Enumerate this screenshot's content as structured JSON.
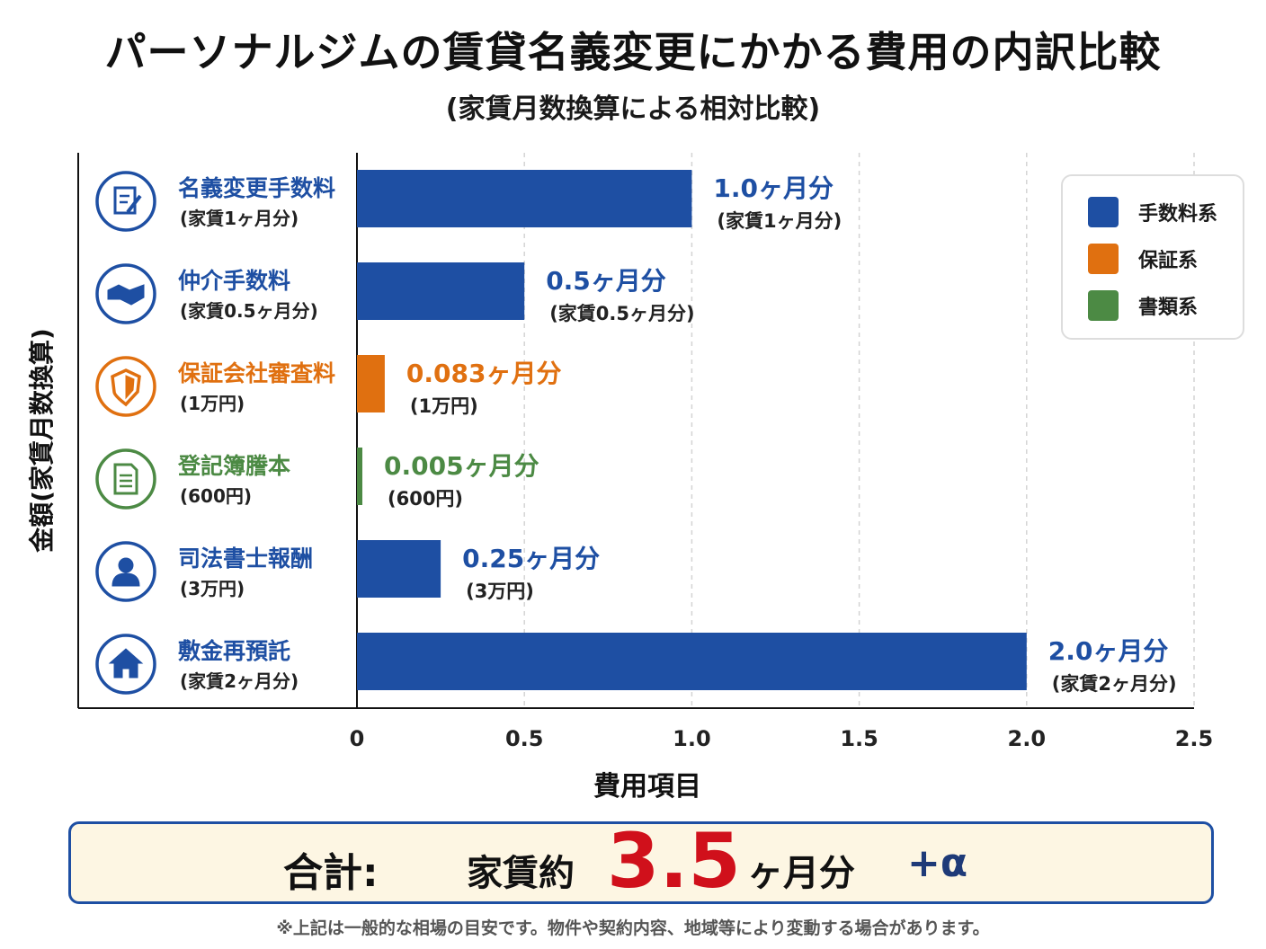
{
  "title": "パーソナルジムの賃貸名義変更にかかる費用の内訳比較",
  "subtitle": "(家賃月数換算による相対比較)",
  "colors": {
    "fee": "#1e4fa3",
    "guarantee": "#e07010",
    "document": "#4c8a44"
  },
  "chart_data": {
    "type": "bar",
    "orientation": "horizontal",
    "xlabel": "費用項目",
    "ylabel": "金額(家賃月数換算)",
    "xlim": [
      0,
      2.5
    ],
    "xticks": [
      "0",
      "0.5",
      "1.0",
      "1.5",
      "2.0",
      "2.5"
    ],
    "grid": "vertical-dashed",
    "legend_position": "top-right",
    "categories": [
      {
        "name": "名義変更手数料",
        "sub": "(家賃1ヶ月分)",
        "value": 1.0,
        "group": "fee",
        "label": "1.0ヶ月分",
        "label_sub": "(家賃1ヶ月分)",
        "icon": "document-edit-icon"
      },
      {
        "name": "仲介手数料",
        "sub": "(家賃0.5ヶ月分)",
        "value": 0.5,
        "group": "fee",
        "label": "0.5ヶ月分",
        "label_sub": "(家賃0.5ヶ月分)",
        "icon": "handshake-icon"
      },
      {
        "name": "保証会社審査料",
        "sub": "(1万円)",
        "value": 0.083,
        "group": "guarantee",
        "label": "0.083ヶ月分",
        "label_sub": "(1万円)",
        "icon": "shield-icon"
      },
      {
        "name": "登記簿謄本",
        "sub": "(600円)",
        "value": 0.005,
        "group": "document",
        "label": "0.005ヶ月分",
        "label_sub": "(600円)",
        "icon": "document-icon"
      },
      {
        "name": "司法書士報酬",
        "sub": "(3万円)",
        "value": 0.25,
        "group": "fee",
        "label": "0.25ヶ月分",
        "label_sub": "(3万円)",
        "icon": "person-icon"
      },
      {
        "name": "敷金再預託",
        "sub": "(家賃2ヶ月分)",
        "value": 2.0,
        "group": "fee",
        "label": "2.0ヶ月分",
        "label_sub": "(家賃2ヶ月分)",
        "icon": "house-icon"
      }
    ],
    "legend": [
      {
        "name": "手数料系",
        "group": "fee"
      },
      {
        "name": "保証系",
        "group": "guarantee"
      },
      {
        "name": "書類系",
        "group": "document"
      }
    ]
  },
  "total": {
    "label": "合計:",
    "prefix": "家賃約",
    "value": "3.5",
    "unit": "ヶ月分",
    "plus": "+α"
  },
  "footnote": "※上記は一般的な相場の目安です。物件や契約内容、地域等により変動する場合があります。"
}
